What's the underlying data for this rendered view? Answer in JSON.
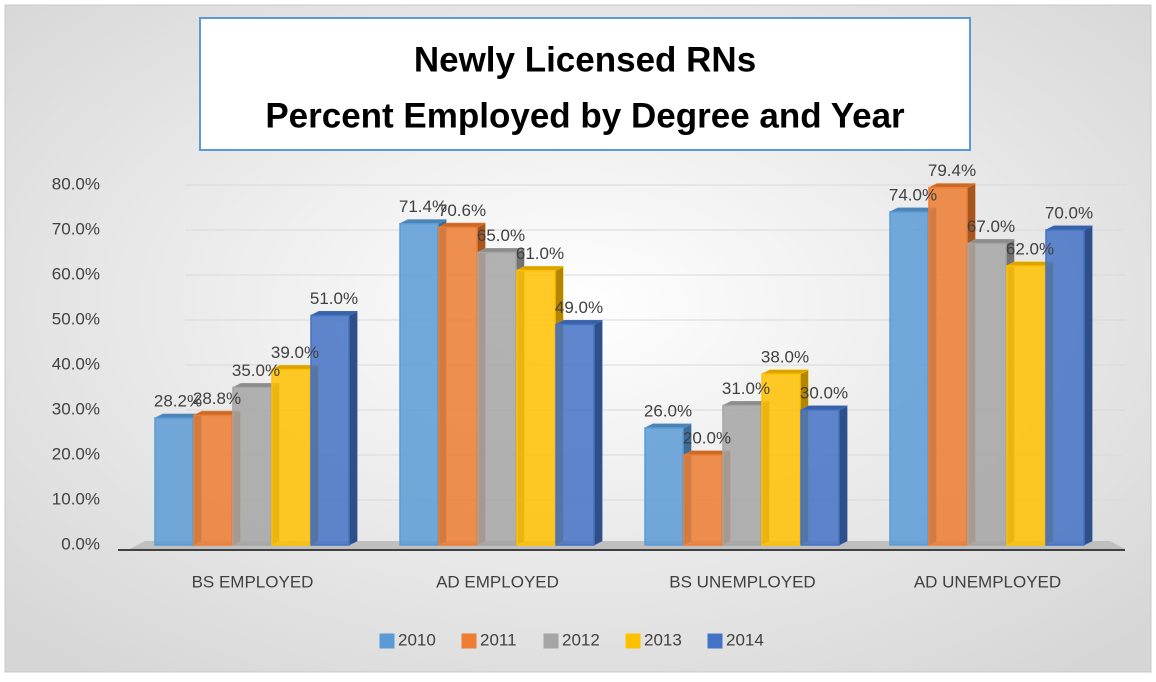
{
  "chart_data": {
    "type": "bar3d",
    "title": "Newly Licensed RNs",
    "subtitle": "Percent Employed by Degree and Year",
    "categories": [
      "BS EMPLOYED",
      "AD EMPLOYED",
      "BS UNEMPLOYED",
      "AD UNEMPLOYED"
    ],
    "series": [
      {
        "name": "2010",
        "color": "#5b9bd5",
        "values": [
          28.2,
          71.4,
          26.0,
          74.0
        ],
        "value_labels": [
          "28.2%",
          "71.4%",
          "26.0%",
          "74.0%"
        ]
      },
      {
        "name": "2011",
        "color": "#ed7d31",
        "values": [
          28.8,
          70.6,
          20.0,
          79.4
        ],
        "value_labels": [
          "28.8%",
          "70.6%",
          "20.0%",
          "79.4%"
        ]
      },
      {
        "name": "2012",
        "color": "#a5a5a5",
        "values": [
          35.0,
          65.0,
          31.0,
          67.0
        ],
        "value_labels": [
          "35.0%",
          "65.0%",
          "31.0%",
          "67.0%"
        ]
      },
      {
        "name": "2013",
        "color": "#ffc000",
        "values": [
          39.0,
          61.0,
          38.0,
          62.0
        ],
        "value_labels": [
          "39.0%",
          "61.0%",
          "38.0%",
          "62.0%"
        ]
      },
      {
        "name": "2014",
        "color": "#4472c4",
        "values": [
          51.0,
          49.0,
          30.0,
          70.0
        ],
        "value_labels": [
          "51.0%",
          "49.0%",
          "30.0%",
          "70.0%"
        ]
      }
    ],
    "ylim": [
      0,
      80
    ],
    "yticks": [
      {
        "value": 0,
        "label": "0.0%"
      },
      {
        "value": 10,
        "label": "10.0%"
      },
      {
        "value": 20,
        "label": "20.0%"
      },
      {
        "value": 30,
        "label": "30.0%"
      },
      {
        "value": 40,
        "label": "40.0%"
      },
      {
        "value": 50,
        "label": "50.0%"
      },
      {
        "value": 60,
        "label": "60.0%"
      },
      {
        "value": 70,
        "label": "70.0%"
      },
      {
        "value": 80,
        "label": "80.0%"
      }
    ],
    "grid": true,
    "legend": "bottom"
  }
}
